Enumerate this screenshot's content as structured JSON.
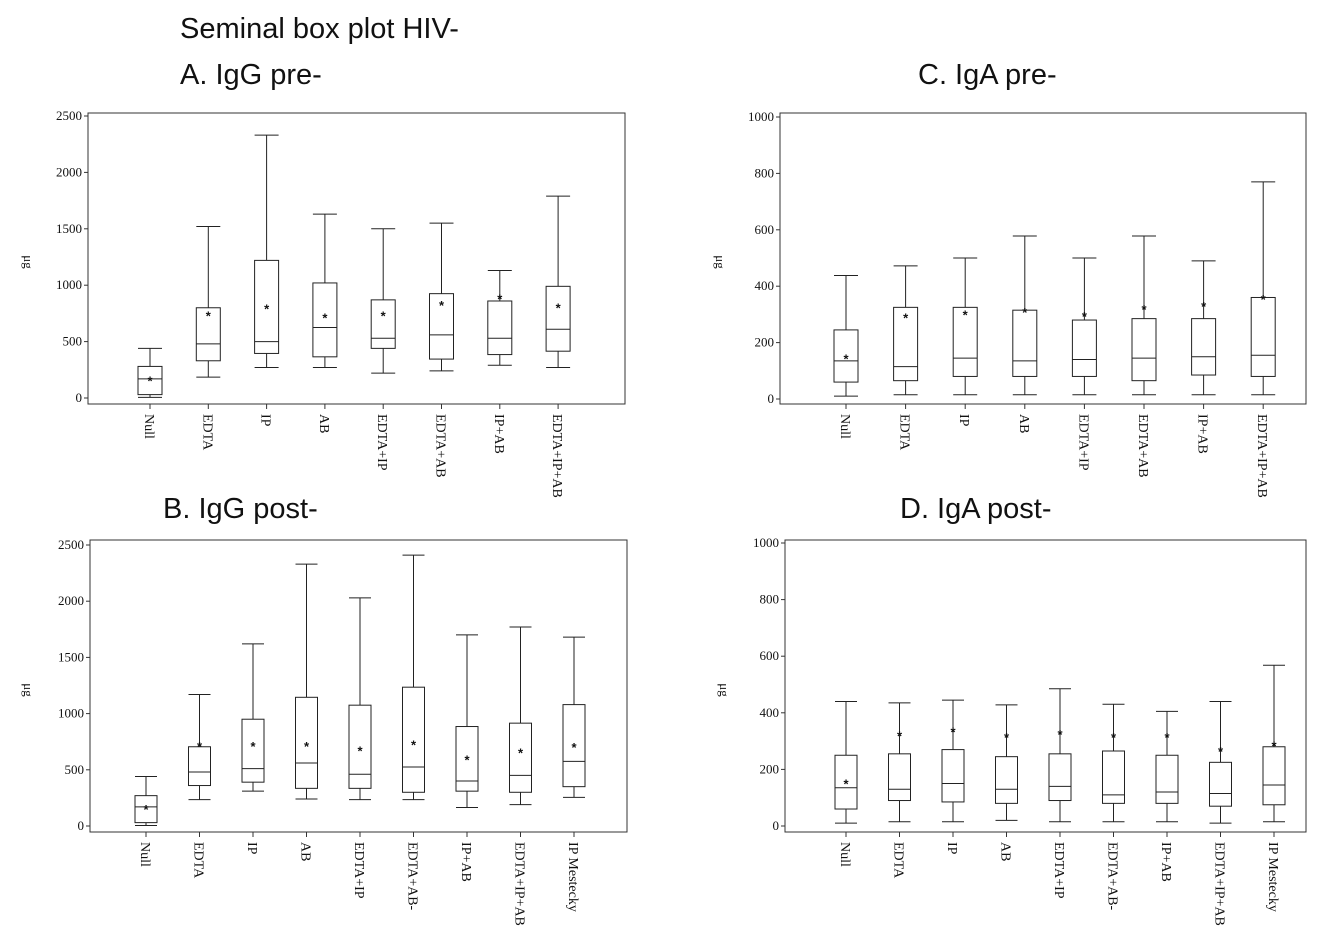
{
  "figure_title": "Seminal box plot HIV-",
  "chart_data": [
    {
      "type": "box",
      "title": "A. IgG pre-",
      "ylabel": "μg",
      "ylim": [
        0,
        2500
      ],
      "yticks": [
        0,
        500,
        1000,
        1500,
        2000,
        2500
      ],
      "categories": [
        "Null",
        "EDTA",
        "IP",
        "AB",
        "EDTA+IP",
        "EDTA+AB",
        "IP+AB",
        "EDTA+IP+AB"
      ],
      "boxes": [
        {
          "whisker_low": 5,
          "q1": 30,
          "median": 170,
          "q3": 280,
          "whisker_high": 440,
          "mean": 180
        },
        {
          "whisker_low": 185,
          "q1": 330,
          "median": 480,
          "q3": 800,
          "whisker_high": 1520,
          "mean": 760
        },
        {
          "whisker_low": 270,
          "q1": 395,
          "median": 500,
          "q3": 1220,
          "whisker_high": 2330,
          "mean": 820
        },
        {
          "whisker_low": 270,
          "q1": 365,
          "median": 625,
          "q3": 1020,
          "whisker_high": 1630,
          "mean": 740
        },
        {
          "whisker_low": 220,
          "q1": 440,
          "median": 530,
          "q3": 870,
          "whisker_high": 1500,
          "mean": 760
        },
        {
          "whisker_low": 240,
          "q1": 345,
          "median": 560,
          "q3": 925,
          "whisker_high": 1550,
          "mean": 850
        },
        {
          "whisker_low": 290,
          "q1": 385,
          "median": 530,
          "q3": 860,
          "whisker_high": 1130,
          "mean": 910
        },
        {
          "whisker_low": 270,
          "q1": 415,
          "median": 610,
          "q3": 990,
          "whisker_high": 1790,
          "mean": 830
        }
      ]
    },
    {
      "type": "box",
      "title": "B.          IgG post-",
      "ylabel": "μg",
      "ylim": [
        0,
        2500
      ],
      "yticks": [
        0,
        500,
        1000,
        1500,
        2000,
        2500
      ],
      "categories": [
        "Null",
        "EDTA",
        "IP",
        "AB",
        "EDTA+IP",
        "EDTA+AB-",
        "IP+AB",
        "EDTA+IP+AB",
        "IP Mestecky"
      ],
      "boxes": [
        {
          "whisker_low": 5,
          "q1": 30,
          "median": 170,
          "q3": 270,
          "whisker_high": 440,
          "mean": 180
        },
        {
          "whisker_low": 235,
          "q1": 360,
          "median": 480,
          "q3": 705,
          "whisker_high": 1170,
          "mean": 740
        },
        {
          "whisker_low": 310,
          "q1": 390,
          "median": 510,
          "q3": 950,
          "whisker_high": 1620,
          "mean": 740
        },
        {
          "whisker_low": 240,
          "q1": 335,
          "median": 560,
          "q3": 1145,
          "whisker_high": 2330,
          "mean": 740
        },
        {
          "whisker_low": 235,
          "q1": 335,
          "median": 460,
          "q3": 1075,
          "whisker_high": 2030,
          "mean": 700
        },
        {
          "whisker_low": 235,
          "q1": 300,
          "median": 525,
          "q3": 1235,
          "whisker_high": 2410,
          "mean": 750
        },
        {
          "whisker_low": 165,
          "q1": 310,
          "median": 400,
          "q3": 885,
          "whisker_high": 1700,
          "mean": 620
        },
        {
          "whisker_low": 190,
          "q1": 300,
          "median": 450,
          "q3": 915,
          "whisker_high": 1770,
          "mean": 680
        },
        {
          "whisker_low": 255,
          "q1": 350,
          "median": 575,
          "q3": 1080,
          "whisker_high": 1680,
          "mean": 730
        }
      ]
    },
    {
      "type": "box",
      "title": "C. IgA pre-",
      "ylabel": "μg",
      "ylim": [
        0,
        1000
      ],
      "yticks": [
        0,
        200,
        400,
        600,
        800,
        1000
      ],
      "categories": [
        "Null",
        "EDTA",
        "IP",
        "AB",
        "EDTA+IP",
        "EDTA+AB",
        "IP+AB",
        "EDTA+IP+AB"
      ],
      "boxes": [
        {
          "whisker_low": 10,
          "q1": 60,
          "median": 135,
          "q3": 245,
          "whisker_high": 438,
          "mean": 155
        },
        {
          "whisker_low": 15,
          "q1": 65,
          "median": 115,
          "q3": 325,
          "whisker_high": 472,
          "mean": 300
        },
        {
          "whisker_low": 15,
          "q1": 80,
          "median": 145,
          "q3": 325,
          "whisker_high": 500,
          "mean": 310
        },
        {
          "whisker_low": 15,
          "q1": 80,
          "median": 135,
          "q3": 315,
          "whisker_high": 578,
          "mean": 320
        },
        {
          "whisker_low": 15,
          "q1": 80,
          "median": 140,
          "q3": 280,
          "whisker_high": 500,
          "mean": 305
        },
        {
          "whisker_low": 15,
          "q1": 65,
          "median": 145,
          "q3": 285,
          "whisker_high": 578,
          "mean": 330
        },
        {
          "whisker_low": 15,
          "q1": 85,
          "median": 150,
          "q3": 285,
          "whisker_high": 490,
          "mean": 340
        },
        {
          "whisker_low": 15,
          "q1": 80,
          "median": 155,
          "q3": 360,
          "whisker_high": 770,
          "mean": 365
        }
      ]
    },
    {
      "type": "box",
      "title": "D. IgA post-",
      "ylabel": "μg",
      "ylim": [
        0,
        1000
      ],
      "yticks": [
        0,
        200,
        400,
        600,
        800,
        1000
      ],
      "categories": [
        "Null",
        "EDTA",
        "IP",
        "AB",
        "EDTA+IP",
        "EDTA+AB-",
        "IP+AB",
        "EDTA+IP+AB",
        "IP Mestecky"
      ],
      "boxes": [
        {
          "whisker_low": 10,
          "q1": 60,
          "median": 135,
          "q3": 250,
          "whisker_high": 440,
          "mean": 160
        },
        {
          "whisker_low": 15,
          "q1": 90,
          "median": 130,
          "q3": 255,
          "whisker_high": 435,
          "mean": 330
        },
        {
          "whisker_low": 15,
          "q1": 85,
          "median": 150,
          "q3": 270,
          "whisker_high": 445,
          "mean": 345
        },
        {
          "whisker_low": 20,
          "q1": 80,
          "median": 130,
          "q3": 245,
          "whisker_high": 428,
          "mean": 325
        },
        {
          "whisker_low": 15,
          "q1": 90,
          "median": 140,
          "q3": 255,
          "whisker_high": 485,
          "mean": 335
        },
        {
          "whisker_low": 15,
          "q1": 80,
          "median": 110,
          "q3": 265,
          "whisker_high": 430,
          "mean": 325
        },
        {
          "whisker_low": 15,
          "q1": 80,
          "median": 120,
          "q3": 250,
          "whisker_high": 405,
          "mean": 325
        },
        {
          "whisker_low": 10,
          "q1": 70,
          "median": 115,
          "q3": 225,
          "whisker_high": 440,
          "mean": 275
        },
        {
          "whisker_low": 15,
          "q1": 75,
          "median": 145,
          "q3": 280,
          "whisker_high": 568,
          "mean": 295
        }
      ]
    }
  ]
}
